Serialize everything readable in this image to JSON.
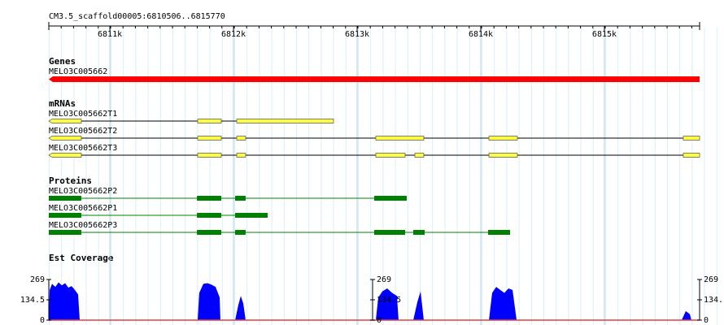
{
  "ruler": {
    "title": "CM3.5_scaffold00005:6810506..6815770",
    "xlim": [
      6810506,
      6815770
    ],
    "xticks": [
      {
        "value": 6811000,
        "label": "6811k"
      },
      {
        "value": 6812000,
        "label": "6812k"
      },
      {
        "value": 6813000,
        "label": "6813k"
      },
      {
        "value": 6814000,
        "label": "6814k"
      },
      {
        "value": 6815000,
        "label": "6815k"
      }
    ]
  },
  "tracks": {
    "genes": {
      "label": "Genes",
      "color": "#ff0000",
      "features": [
        {
          "name": "MELO3C005662",
          "start": 6810506,
          "end": 6815770
        }
      ]
    },
    "mrnas": {
      "label": "mRNAs",
      "color": "#ffff44",
      "features": [
        {
          "name": "MELO3C005662T1",
          "exons": [
            [
              6810506,
              6810769
            ],
            [
              6811710,
              6811901
            ],
            [
              6812026,
              6812809
            ]
          ]
        },
        {
          "name": "MELO3C005662T2",
          "exons": [
            [
              6810506,
              6810769
            ],
            [
              6811710,
              6811901
            ],
            [
              6812026,
              6812098
            ],
            [
              6813151,
              6813539
            ],
            [
              6814066,
              6814296
            ],
            [
              6815638,
              6815770
            ]
          ]
        },
        {
          "name": "MELO3C005662T3",
          "exons": [
            [
              6810506,
              6810769
            ],
            [
              6811710,
              6811901
            ],
            [
              6812026,
              6812098
            ],
            [
              6813151,
              6813388
            ],
            [
              6813467,
              6813539
            ],
            [
              6814066,
              6814296
            ],
            [
              6815638,
              6815770
            ]
          ]
        }
      ]
    },
    "proteins": {
      "label": "Proteins",
      "color": "#008000",
      "features": [
        {
          "name": "MELO3C005662P2",
          "exons": [
            [
              6810506,
              6810769
            ],
            [
              6811704,
              6811901
            ],
            [
              6812013,
              6812098
            ],
            [
              6813138,
              6813401
            ]
          ]
        },
        {
          "name": "MELO3C005662P1",
          "exons": [
            [
              6810506,
              6810769
            ],
            [
              6811704,
              6811901
            ],
            [
              6812013,
              6812276
            ]
          ]
        },
        {
          "name": "MELO3C005662P3",
          "exons": [
            [
              6810506,
              6810769
            ],
            [
              6811704,
              6811901
            ],
            [
              6812013,
              6812098
            ],
            [
              6813138,
              6813388
            ],
            [
              6813454,
              6813546
            ],
            [
              6814059,
              6814237
            ]
          ]
        }
      ]
    },
    "coverage": {
      "label": "Est Coverage",
      "color": "#0000ff",
      "ylim": [
        0,
        269
      ],
      "yticks": [
        0,
        134.5,
        269
      ],
      "segments": [
        {
          "x": [
            6810506,
            6810513,
            6810532,
            6810559,
            6810585,
            6810611,
            6810638,
            6810664,
            6810690,
            6810717,
            6810743,
            6810756
          ],
          "values": [
            0,
            200,
            240,
            220,
            250,
            230,
            245,
            215,
            225,
            200,
            170,
            0
          ]
        },
        {
          "x": [
            6811710,
            6811723,
            6811756,
            6811789,
            6811822,
            6811855,
            6811888,
            6811894
          ],
          "values": [
            0,
            180,
            240,
            245,
            235,
            220,
            150,
            0
          ]
        },
        {
          "x": [
            6812013,
            6812039,
            6812059,
            6812079,
            6812098
          ],
          "values": [
            0,
            100,
            160,
            110,
            0
          ]
        },
        {
          "x": [
            6813151,
            6813171,
            6813204,
            6813243,
            6813283,
            6813322,
            6813335
          ],
          "values": [
            0,
            150,
            190,
            210,
            180,
            160,
            0
          ]
        },
        {
          "x": [
            6813454,
            6813487,
            6813513,
            6813539
          ],
          "values": [
            0,
            120,
            190,
            0
          ]
        },
        {
          "x": [
            6814066,
            6814092,
            6814125,
            6814158,
            6814191,
            6814224,
            6814257,
            6814290
          ],
          "values": [
            0,
            180,
            220,
            200,
            180,
            210,
            200,
            0
          ]
        },
        {
          "x": [
            6815625,
            6815658,
            6815691,
            6815704
          ],
          "values": [
            0,
            60,
            40,
            0
          ]
        }
      ]
    }
  }
}
